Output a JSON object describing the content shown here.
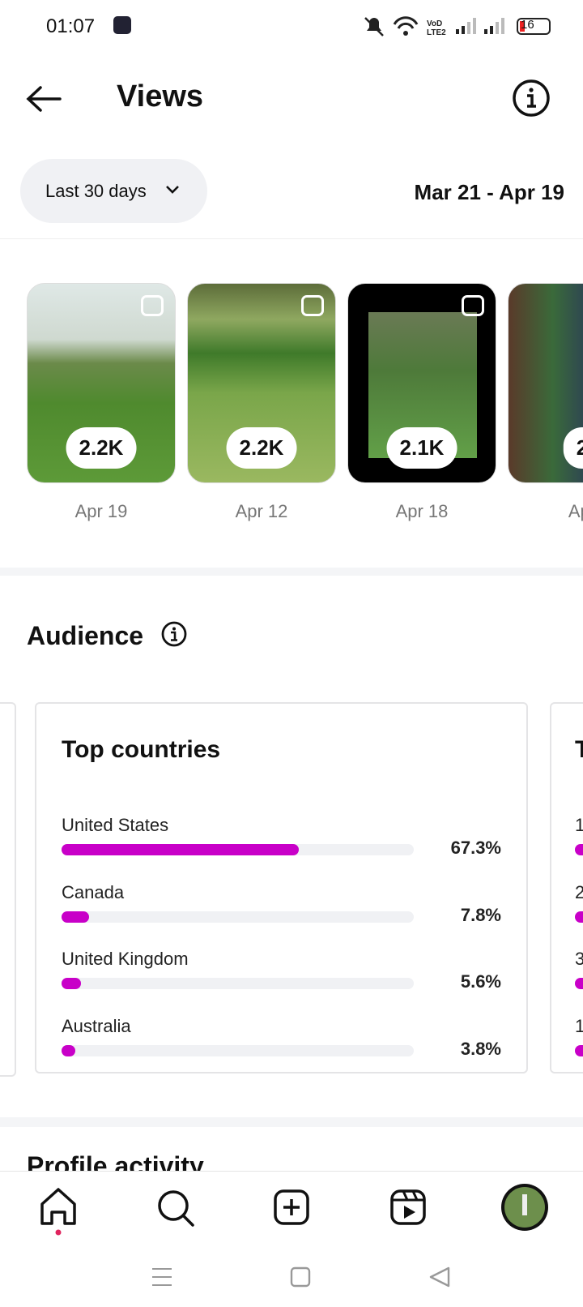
{
  "status_bar": {
    "time": "01:07",
    "battery": "16"
  },
  "header": {
    "title": "Views"
  },
  "filter": {
    "period": "Last 30 days",
    "date_range": "Mar 21 - Apr 19"
  },
  "reels": [
    {
      "views": "2.2K",
      "date": "Apr 19"
    },
    {
      "views": "2.2K",
      "date": "Apr 12"
    },
    {
      "views": "2.1K",
      "date": "Apr 18"
    },
    {
      "views": "2",
      "date": "Apr"
    }
  ],
  "audience": {
    "title": "Audience",
    "card": {
      "title": "Top countries",
      "rows": [
        {
          "name": "United States",
          "value": 67.3,
          "label": "67.3%"
        },
        {
          "name": "Canada",
          "value": 7.8,
          "label": "7.8%"
        },
        {
          "name": "United Kingdom",
          "value": 5.6,
          "label": "5.6%"
        },
        {
          "name": "Australia",
          "value": 3.8,
          "label": "3.8%"
        }
      ]
    },
    "next_card": {
      "title": "T",
      "rows": [
        "1",
        "2",
        "3",
        "1"
      ]
    }
  },
  "next_section": {
    "title": "Profile activity"
  }
}
